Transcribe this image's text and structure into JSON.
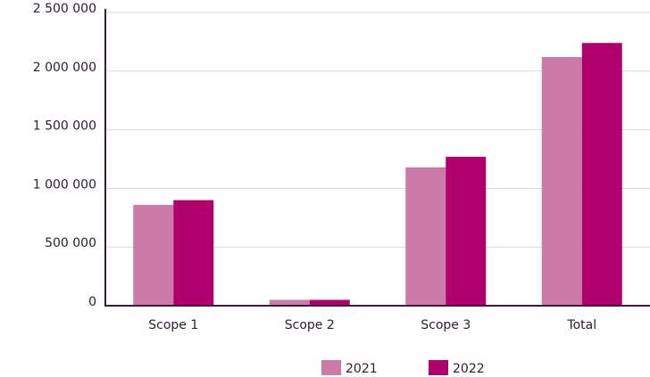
{
  "chart_data": {
    "type": "bar",
    "categories": [
      "Scope 1",
      "Scope 2",
      "Scope 3",
      "Total"
    ],
    "series": [
      {
        "name": "2021",
        "color": "#cc7aa6",
        "values": [
          860000,
          50000,
          1180000,
          2120000
        ]
      },
      {
        "name": "2022",
        "color": "#b0006b",
        "values": [
          900000,
          50000,
          1270000,
          2240000
        ]
      }
    ],
    "ylim": [
      0,
      2500000
    ],
    "yticks": [
      0,
      {
        "value": 500000,
        "label": "500 000"
      },
      {
        "value": 1000000,
        "label": "1 000 000"
      },
      {
        "value": 1500000,
        "label": "1 500 000"
      },
      {
        "value": 2000000,
        "label": "2 000 000"
      },
      {
        "value": 2500000,
        "label": "2 500 000"
      }
    ],
    "grid": true,
    "legend": "bottom"
  }
}
